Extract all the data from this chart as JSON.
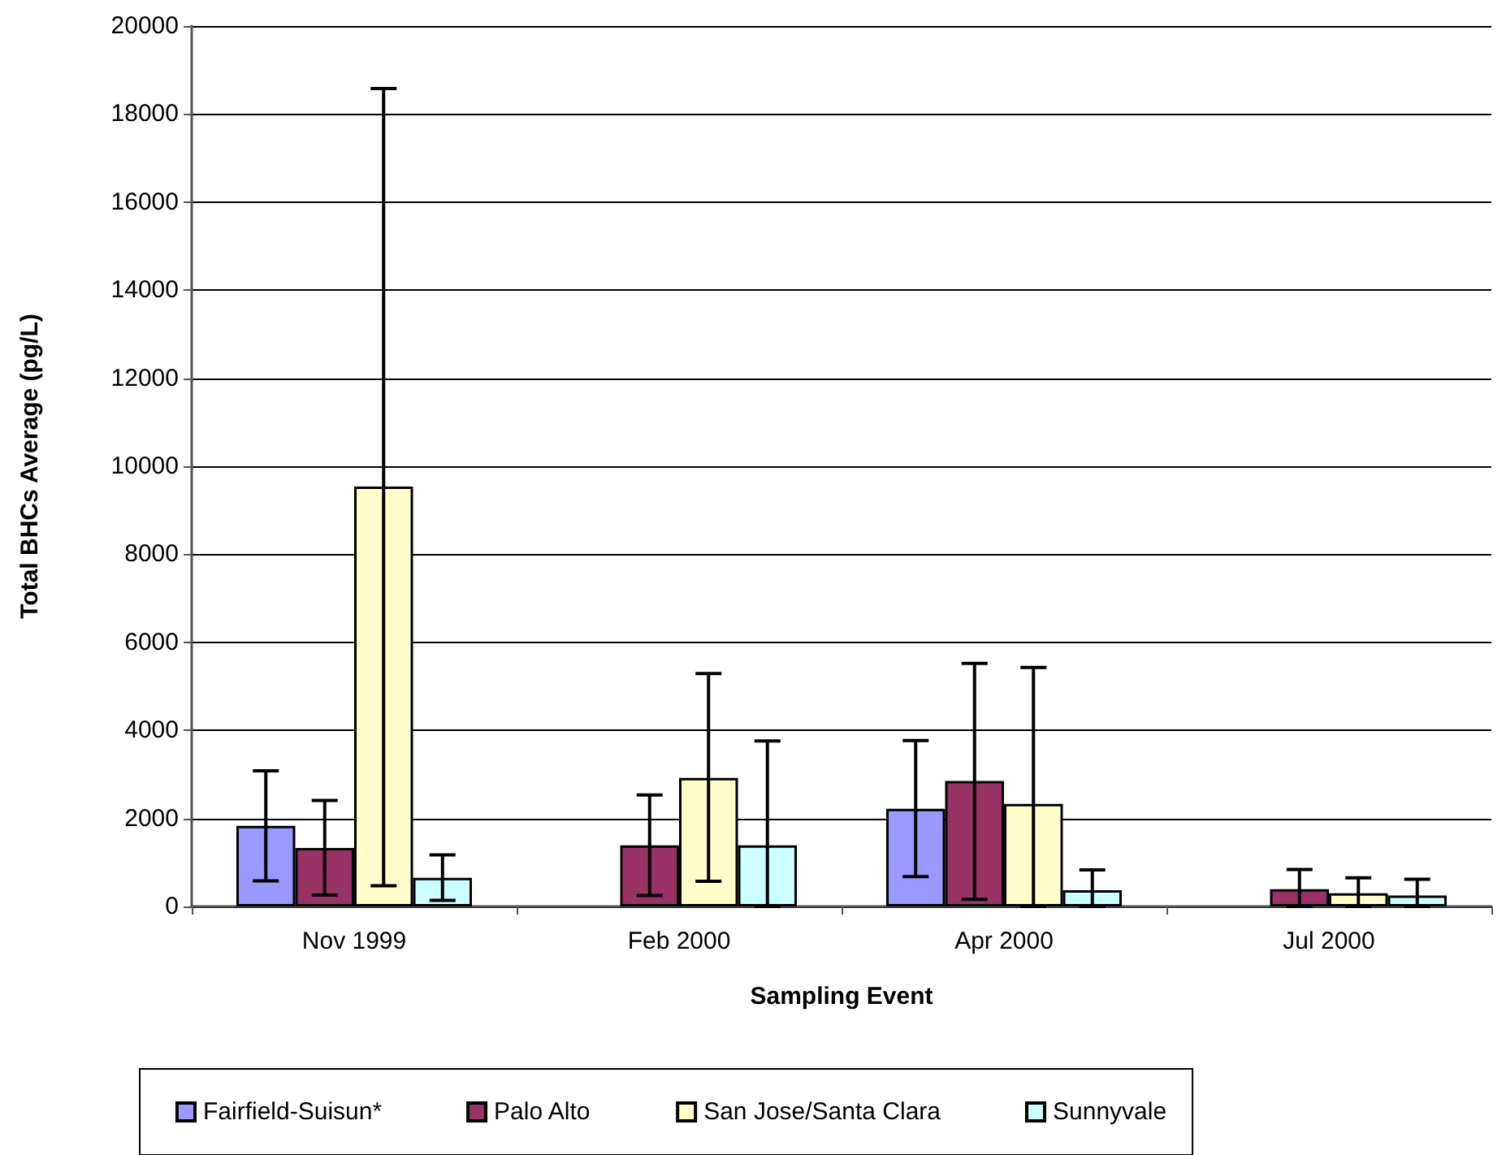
{
  "chart_data": {
    "type": "bar",
    "xlabel": "Sampling Event",
    "ylabel": "Total BHCs Average (pg/L)",
    "categories": [
      "Nov 1999",
      "Feb 2000",
      "Apr 2000",
      "Jul 2000"
    ],
    "series": [
      {
        "name": "Fairfield-Suisun*",
        "color": "#9999ff",
        "values": [
          1830,
          null,
          2220,
          null
        ],
        "errors": [
          [
            580,
            3080
          ],
          null,
          [
            680,
            3770
          ],
          null
        ]
      },
      {
        "name": "Palo Alto",
        "color": "#993366",
        "values": [
          1330,
          1390,
          2850,
          390
        ],
        "errors": [
          [
            260,
            2410
          ],
          [
            250,
            2530
          ],
          [
            160,
            5520
          ],
          [
            0,
            840
          ]
        ]
      },
      {
        "name": "San Jose/Santa Clara",
        "color": "#ffffcc",
        "values": [
          9540,
          2920,
          2330,
          300
        ],
        "errors": [
          [
            470,
            18580
          ],
          [
            570,
            5290
          ],
          [
            0,
            5430
          ],
          [
            0,
            650
          ]
        ]
      },
      {
        "name": "Sunnyvale",
        "color": "#ccffff",
        "values": [
          650,
          1390,
          370,
          250
        ],
        "errors": [
          [
            140,
            1170
          ],
          [
            0,
            3760
          ],
          [
            0,
            830
          ],
          [
            0,
            620
          ]
        ]
      }
    ],
    "ylim": [
      0,
      20000
    ],
    "yticks": [
      0,
      2000,
      4000,
      6000,
      8000,
      10000,
      12000,
      14000,
      16000,
      18000,
      20000
    ],
    "grid": "y",
    "legend": "bottom"
  }
}
